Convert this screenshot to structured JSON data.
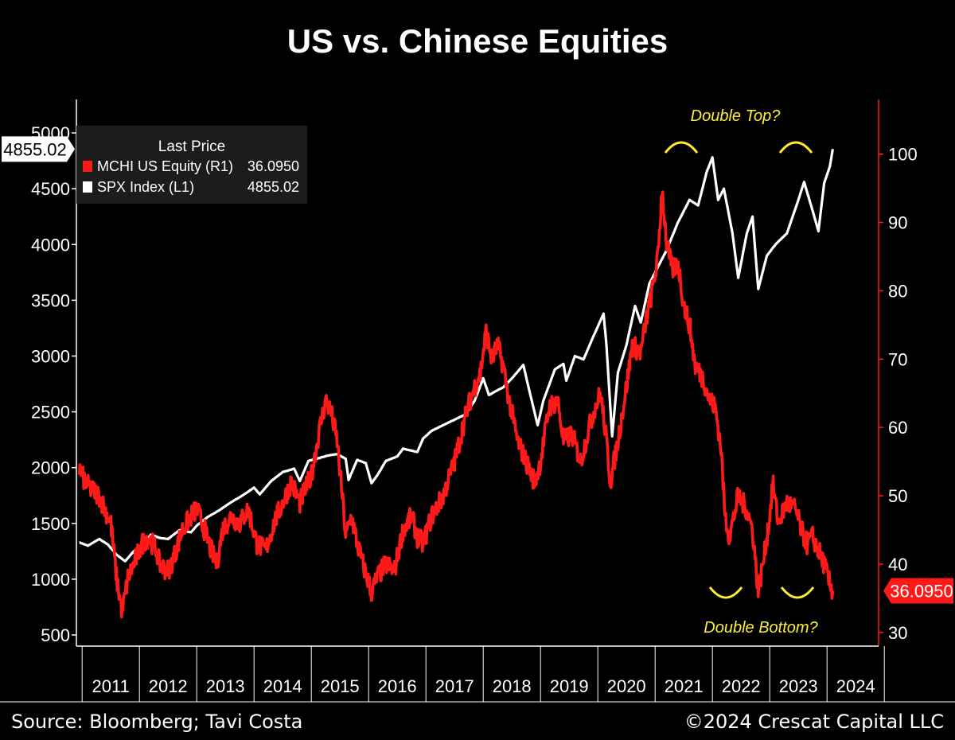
{
  "title": "US vs. Chinese Equities",
  "source": "Source: Bloomberg; Tavi Costa",
  "copyright": "©2024 Crescat Capital LLC",
  "chart_data": {
    "type": "line",
    "title": "US vs. Chinese Equities",
    "x_range": [
      2010.9,
      2024.9
    ],
    "x_tick_labels": [
      "2011",
      "2012",
      "2013",
      "2014",
      "2015",
      "2016",
      "2017",
      "2018",
      "2019",
      "2020",
      "2021",
      "2022",
      "2023",
      "2024"
    ],
    "y_left": {
      "range": [
        400,
        5300
      ],
      "ticks": [
        500,
        1000,
        1500,
        2000,
        2500,
        3000,
        3500,
        4000,
        4500,
        5000
      ],
      "color": "#ffffff"
    },
    "y_right": {
      "range": [
        28,
        108
      ],
      "ticks": [
        30,
        40,
        50,
        60,
        70,
        80,
        90,
        100
      ],
      "color": "#ff1a1a"
    },
    "legend": {
      "header": "Last Price",
      "position": "top-left",
      "entries": [
        {
          "label": "MCHI US Equity  (R1)",
          "value": "36.0950",
          "color": "#ff1a1a"
        },
        {
          "label": "SPX Index  (L1)",
          "value": "4855.02",
          "color": "#ffffff"
        }
      ]
    },
    "last_value_labels": {
      "left": "4855.02",
      "right": "36.0950"
    },
    "annotations": [
      {
        "text": "Double Top?",
        "color": "#ffee33"
      },
      {
        "text": "Double Bottom?",
        "color": "#ffee33"
      }
    ],
    "series": [
      {
        "name": "SPX Index  (L1)",
        "axis": "left",
        "color": "#ffffff",
        "points": [
          [
            2010.95,
            1330
          ],
          [
            2011.1,
            1300
          ],
          [
            2011.3,
            1360
          ],
          [
            2011.45,
            1310
          ],
          [
            2011.6,
            1220
          ],
          [
            2011.75,
            1160
          ],
          [
            2011.9,
            1250
          ],
          [
            2012.0,
            1280
          ],
          [
            2012.2,
            1400
          ],
          [
            2012.35,
            1370
          ],
          [
            2012.5,
            1360
          ],
          [
            2012.7,
            1440
          ],
          [
            2012.9,
            1420
          ],
          [
            2013.0,
            1480
          ],
          [
            2013.2,
            1560
          ],
          [
            2013.4,
            1620
          ],
          [
            2013.6,
            1690
          ],
          [
            2013.8,
            1750
          ],
          [
            2014.0,
            1820
          ],
          [
            2014.1,
            1760
          ],
          [
            2014.3,
            1880
          ],
          [
            2014.5,
            1960
          ],
          [
            2014.7,
            1990
          ],
          [
            2014.8,
            1880
          ],
          [
            2014.95,
            2060
          ],
          [
            2015.1,
            2080
          ],
          [
            2015.3,
            2110
          ],
          [
            2015.45,
            2120
          ],
          [
            2015.6,
            2080
          ],
          [
            2015.65,
            1890
          ],
          [
            2015.8,
            2070
          ],
          [
            2015.95,
            2040
          ],
          [
            2016.05,
            1860
          ],
          [
            2016.15,
            1930
          ],
          [
            2016.3,
            2060
          ],
          [
            2016.5,
            2100
          ],
          [
            2016.6,
            2170
          ],
          [
            2016.85,
            2140
          ],
          [
            2016.95,
            2260
          ],
          [
            2017.1,
            2330
          ],
          [
            2017.3,
            2380
          ],
          [
            2017.5,
            2430
          ],
          [
            2017.7,
            2480
          ],
          [
            2017.85,
            2600
          ],
          [
            2018.0,
            2800
          ],
          [
            2018.1,
            2650
          ],
          [
            2018.2,
            2680
          ],
          [
            2018.35,
            2720
          ],
          [
            2018.5,
            2800
          ],
          [
            2018.7,
            2920
          ],
          [
            2018.8,
            2700
          ],
          [
            2018.95,
            2380
          ],
          [
            2019.05,
            2600
          ],
          [
            2019.25,
            2880
          ],
          [
            2019.4,
            2930
          ],
          [
            2019.45,
            2780
          ],
          [
            2019.6,
            3000
          ],
          [
            2019.75,
            2970
          ],
          [
            2019.9,
            3150
          ],
          [
            2020.1,
            3380
          ],
          [
            2020.15,
            3100
          ],
          [
            2020.25,
            2280
          ],
          [
            2020.35,
            2850
          ],
          [
            2020.5,
            3100
          ],
          [
            2020.65,
            3450
          ],
          [
            2020.75,
            3300
          ],
          [
            2020.9,
            3650
          ],
          [
            2021.0,
            3750
          ],
          [
            2021.2,
            3950
          ],
          [
            2021.4,
            4200
          ],
          [
            2021.6,
            4400
          ],
          [
            2021.75,
            4350
          ],
          [
            2021.9,
            4650
          ],
          [
            2022.0,
            4780
          ],
          [
            2022.1,
            4400
          ],
          [
            2022.2,
            4500
          ],
          [
            2022.35,
            4100
          ],
          [
            2022.45,
            3700
          ],
          [
            2022.6,
            4100
          ],
          [
            2022.7,
            4250
          ],
          [
            2022.8,
            3600
          ],
          [
            2022.95,
            3900
          ],
          [
            2023.1,
            4000
          ],
          [
            2023.3,
            4100
          ],
          [
            2023.5,
            4400
          ],
          [
            2023.6,
            4560
          ],
          [
            2023.75,
            4300
          ],
          [
            2023.85,
            4120
          ],
          [
            2023.95,
            4550
          ],
          [
            2024.05,
            4700
          ],
          [
            2024.1,
            4855
          ]
        ]
      },
      {
        "name": "MCHI US Equity  (R1)",
        "axis": "right",
        "color": "#ff1a1a",
        "points": [
          [
            2010.95,
            54
          ],
          [
            2011.05,
            52
          ],
          [
            2011.15,
            51
          ],
          [
            2011.3,
            50
          ],
          [
            2011.4,
            48
          ],
          [
            2011.5,
            46
          ],
          [
            2011.6,
            38
          ],
          [
            2011.7,
            33
          ],
          [
            2011.8,
            38
          ],
          [
            2011.9,
            40
          ],
          [
            2012.05,
            43
          ],
          [
            2012.15,
            44
          ],
          [
            2012.3,
            42
          ],
          [
            2012.35,
            40
          ],
          [
            2012.5,
            39
          ],
          [
            2012.6,
            41
          ],
          [
            2012.75,
            45
          ],
          [
            2012.9,
            47
          ],
          [
            2013.0,
            48
          ],
          [
            2013.1,
            46
          ],
          [
            2013.25,
            42
          ],
          [
            2013.35,
            40
          ],
          [
            2013.45,
            45
          ],
          [
            2013.6,
            47
          ],
          [
            2013.75,
            46
          ],
          [
            2013.9,
            48
          ],
          [
            2014.05,
            43
          ],
          [
            2014.2,
            42
          ],
          [
            2014.35,
            46
          ],
          [
            2014.5,
            49
          ],
          [
            2014.65,
            52
          ],
          [
            2014.8,
            49
          ],
          [
            2014.9,
            51
          ],
          [
            2015.0,
            53
          ],
          [
            2015.15,
            60
          ],
          [
            2015.25,
            64
          ],
          [
            2015.35,
            62
          ],
          [
            2015.45,
            58
          ],
          [
            2015.55,
            49
          ],
          [
            2015.6,
            44
          ],
          [
            2015.7,
            47
          ],
          [
            2015.8,
            43
          ],
          [
            2015.9,
            40
          ],
          [
            2016.05,
            36
          ],
          [
            2016.15,
            38
          ],
          [
            2016.3,
            40
          ],
          [
            2016.45,
            39
          ],
          [
            2016.6,
            45
          ],
          [
            2016.75,
            47
          ],
          [
            2016.85,
            44
          ],
          [
            2016.95,
            43
          ],
          [
            2017.1,
            47
          ],
          [
            2017.3,
            50
          ],
          [
            2017.5,
            55
          ],
          [
            2017.7,
            62
          ],
          [
            2017.85,
            66
          ],
          [
            2017.95,
            68
          ],
          [
            2018.05,
            74
          ],
          [
            2018.15,
            70
          ],
          [
            2018.25,
            72
          ],
          [
            2018.35,
            69
          ],
          [
            2018.45,
            64
          ],
          [
            2018.6,
            58
          ],
          [
            2018.75,
            55
          ],
          [
            2018.9,
            52
          ],
          [
            2019.0,
            55
          ],
          [
            2019.15,
            63
          ],
          [
            2019.3,
            64
          ],
          [
            2019.4,
            58
          ],
          [
            2019.55,
            59
          ],
          [
            2019.7,
            55
          ],
          [
            2019.85,
            60
          ],
          [
            2019.95,
            63
          ],
          [
            2020.05,
            65
          ],
          [
            2020.15,
            58
          ],
          [
            2020.22,
            52
          ],
          [
            2020.35,
            58
          ],
          [
            2020.5,
            66
          ],
          [
            2020.6,
            72
          ],
          [
            2020.75,
            71
          ],
          [
            2020.85,
            76
          ],
          [
            2020.95,
            80
          ],
          [
            2021.05,
            85
          ],
          [
            2021.12,
            95
          ],
          [
            2021.2,
            87
          ],
          [
            2021.3,
            83
          ],
          [
            2021.4,
            84
          ],
          [
            2021.5,
            78
          ],
          [
            2021.6,
            75
          ],
          [
            2021.7,
            69
          ],
          [
            2021.85,
            67
          ],
          [
            2021.95,
            64
          ],
          [
            2022.05,
            63
          ],
          [
            2022.15,
            57
          ],
          [
            2022.22,
            47
          ],
          [
            2022.3,
            44
          ],
          [
            2022.45,
            50
          ],
          [
            2022.6,
            48
          ],
          [
            2022.7,
            45
          ],
          [
            2022.8,
            36
          ],
          [
            2022.9,
            41
          ],
          [
            2023.0,
            47
          ],
          [
            2023.05,
            52
          ],
          [
            2023.15,
            46
          ],
          [
            2023.3,
            49
          ],
          [
            2023.45,
            48
          ],
          [
            2023.55,
            45
          ],
          [
            2023.65,
            43
          ],
          [
            2023.75,
            44
          ],
          [
            2023.85,
            42
          ],
          [
            2023.95,
            40
          ],
          [
            2024.05,
            37
          ],
          [
            2024.1,
            36.095
          ]
        ]
      }
    ]
  }
}
